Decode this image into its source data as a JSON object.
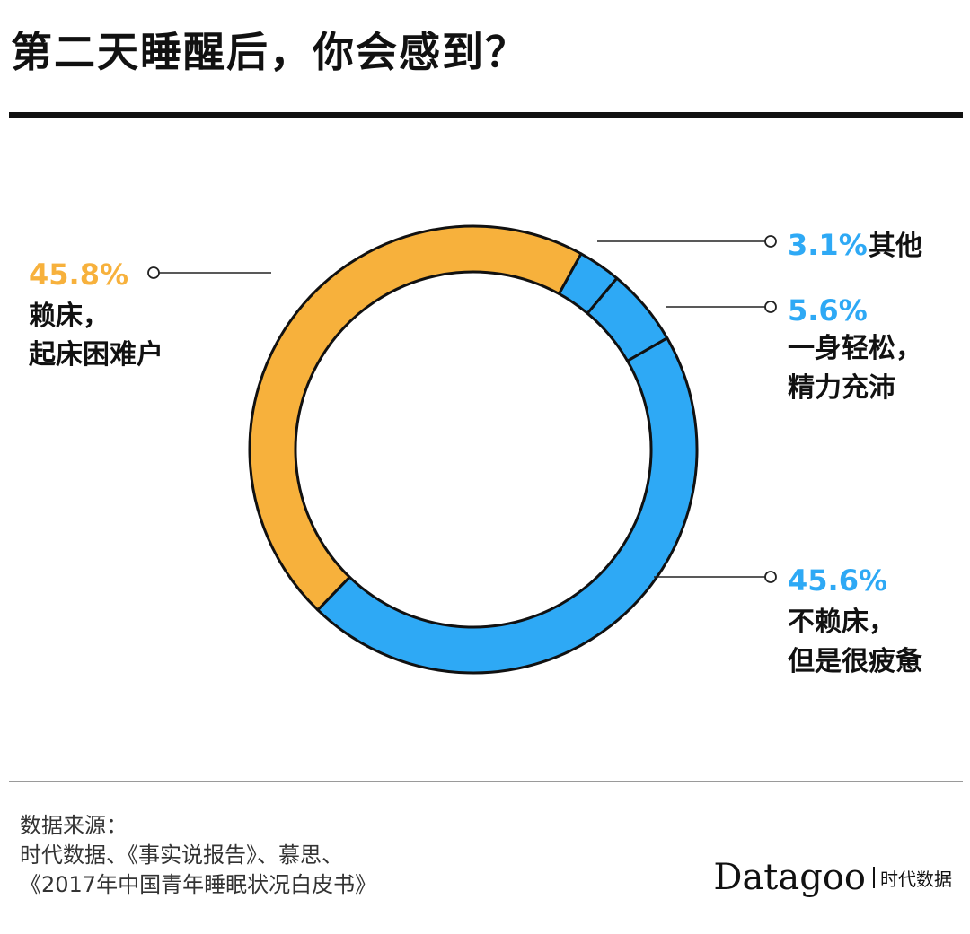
{
  "title": "第二天睡醒后，你会感到？",
  "chart_data": {
    "type": "pie",
    "style": "donut",
    "title": "第二天睡醒后，你会感到？",
    "slices": [
      {
        "label_lines": [
          "其他"
        ],
        "percent_text": "3.1%",
        "value": 3.1,
        "color": "#2ea9f5",
        "label_color": "#2ea9f5"
      },
      {
        "label_lines": [
          "一身轻松，",
          "精力充沛"
        ],
        "percent_text": "5.6%",
        "value": 5.6,
        "color": "#2ea9f5",
        "label_color": "#2ea9f5"
      },
      {
        "label_lines": [
          "不赖床，",
          "但是很疲惫"
        ],
        "percent_text": "45.6%",
        "value": 45.6,
        "color": "#2ea9f5",
        "label_color": "#2ea9f5"
      },
      {
        "label_lines": [
          "赖床，",
          "起床困难户"
        ],
        "percent_text": "45.8%",
        "value": 45.8,
        "color": "#f7b13c",
        "label_color": "#f7b13c"
      }
    ],
    "colors": {
      "blue": "#2ea9f5",
      "orange": "#f7b13c",
      "outline": "#111111"
    },
    "legend": "callout labels"
  },
  "footer": {
    "source_lines": [
      "数据来源：",
      "时代数据、《事实说报告》、慕思、",
      "《2017年中国青年睡眠状况白皮书》"
    ],
    "brand_name": "Datagoo",
    "brand_sub": "时代数据"
  }
}
